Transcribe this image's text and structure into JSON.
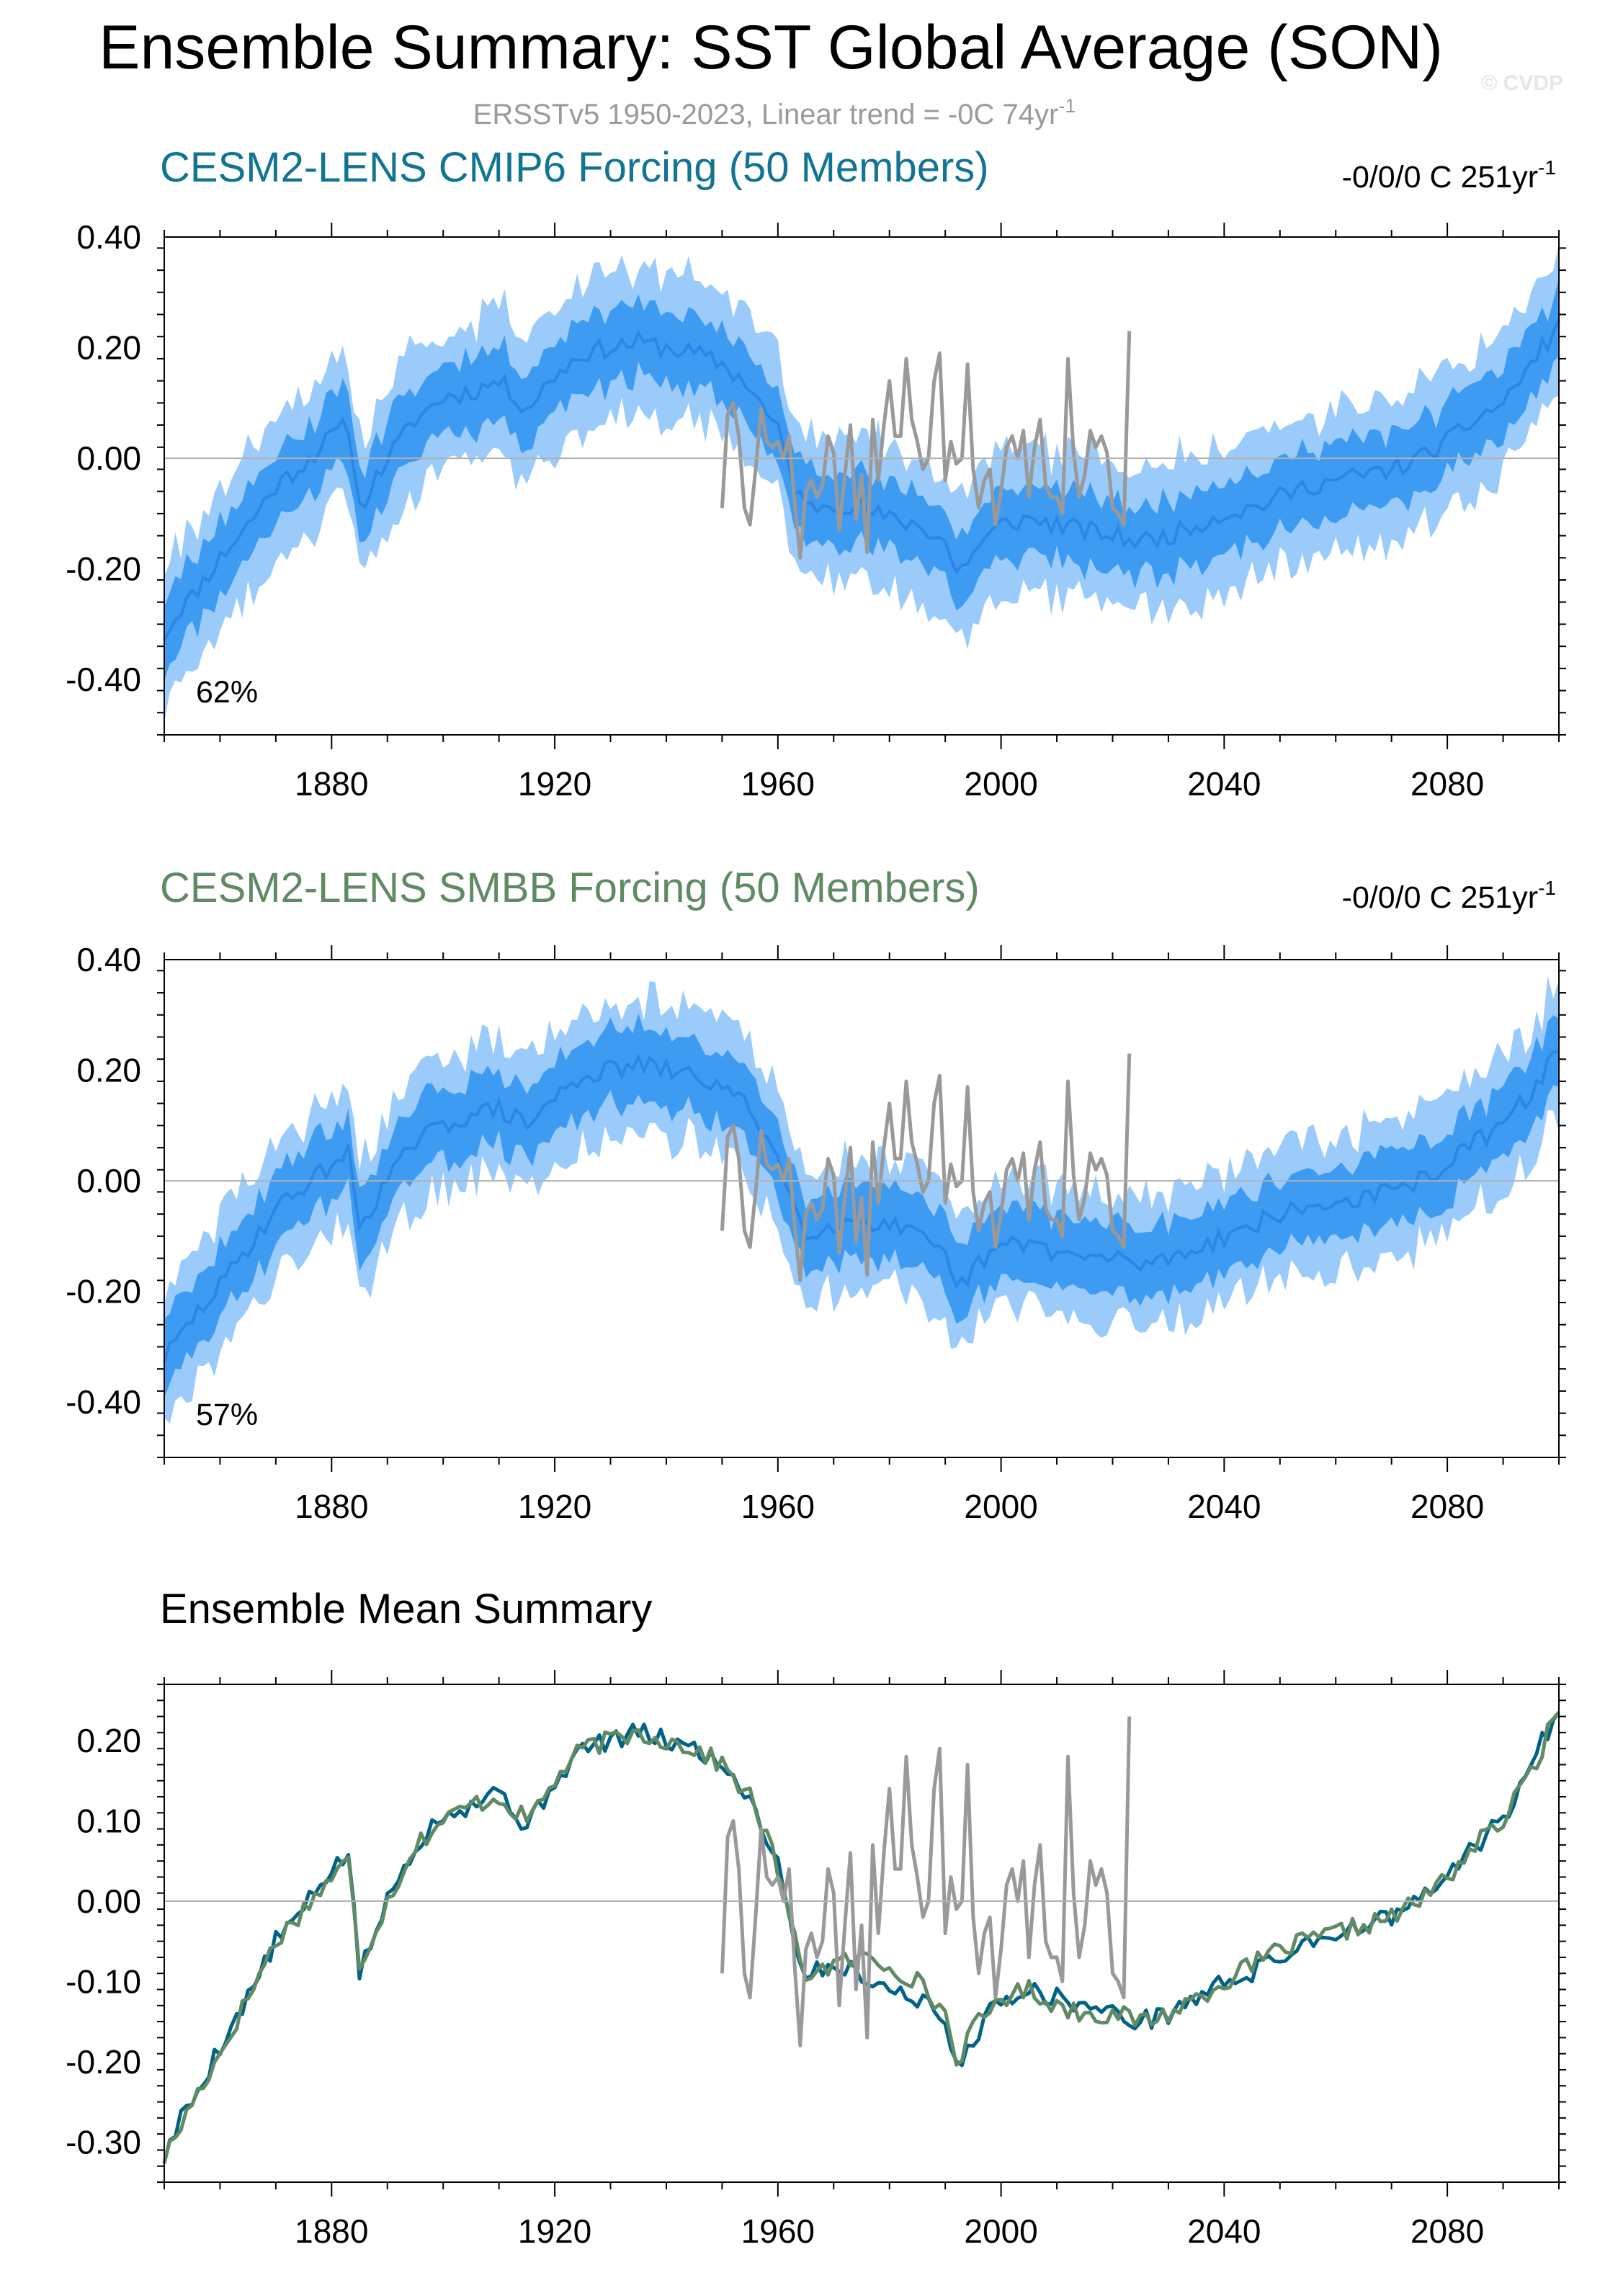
{
  "title": "Ensemble Summary: SST Global Average (SON)",
  "subtitle": {
    "text": "ERSSTv5 1950-2023, Linear trend = -0C 74yr",
    "sup": "-1"
  },
  "watermark": "© CVDP",
  "colors": {
    "band_outer": "#9bcbfb",
    "band_inner": "#3d9bf2",
    "mean_line": "#2c86e6",
    "obs": "#999999",
    "cmip6": "#006386",
    "smbb": "#5f8a63",
    "frame": "#000000",
    "zero_line": "#b0b0b0"
  },
  "panels": [
    {
      "title": "CESM2-LENS CMIP6 Forcing (50 Members)",
      "title_color": "#117495",
      "trend_text": "-0/0/0 C 251yr",
      "trend_sup": "-1",
      "percent_text": "62%",
      "seed": 11
    },
    {
      "title": "CESM2-LENS SMBB Forcing (50 Members)",
      "title_color": "#5f8a63",
      "trend_text": "-0/0/0 C 251yr",
      "trend_sup": "-1",
      "percent_text": "57%",
      "seed": 29
    },
    {
      "title": "Ensemble Mean Summary",
      "title_color": "#000000"
    }
  ],
  "chart_data": [
    {
      "type": "area",
      "title": "CESM2-LENS CMIP6 Forcing (50 Members)",
      "x_range": [
        1850,
        2100
      ],
      "ylim": [
        -0.5,
        0.4
      ],
      "x_ticks": [
        1880,
        1920,
        1960,
        2000,
        2040,
        2080
      ],
      "y_ticks": [
        "0.40",
        "0.20",
        "0.00",
        "-0.20",
        "-0.40"
      ],
      "y_tick_values": [
        0.4,
        0.2,
        0.0,
        -0.2,
        -0.4
      ],
      "ensemble_mean_anchors": {
        "x": [
          1850,
          1853,
          1855,
          1860,
          1865,
          1870,
          1875,
          1880,
          1883,
          1885,
          1890,
          1895,
          1900,
          1905,
          1910,
          1915,
          1920,
          1925,
          1930,
          1935,
          1940,
          1945,
          1950,
          1955,
          1958,
          1960,
          1963,
          1965,
          1970,
          1975,
          1980,
          1985,
          1990,
          1992,
          1995,
          2000,
          2005,
          2010,
          2015,
          2020,
          2025,
          2030,
          2035,
          2040,
          2045,
          2050,
          2055,
          2060,
          2065,
          2070,
          2075,
          2080,
          2085,
          2090,
          2095,
          2100
        ],
        "y": [
          -0.32,
          -0.27,
          -0.25,
          -0.18,
          -0.12,
          -0.05,
          -0.01,
          0.04,
          0.06,
          -0.09,
          0.0,
          0.07,
          0.11,
          0.12,
          0.14,
          0.09,
          0.15,
          0.19,
          0.2,
          0.21,
          0.2,
          0.19,
          0.17,
          0.13,
          0.08,
          0.05,
          -0.05,
          -0.09,
          -0.08,
          -0.09,
          -0.11,
          -0.12,
          -0.15,
          -0.21,
          -0.17,
          -0.12,
          -0.11,
          -0.12,
          -0.13,
          -0.14,
          -0.15,
          -0.14,
          -0.12,
          -0.1,
          -0.09,
          -0.07,
          -0.05,
          -0.04,
          -0.03,
          -0.02,
          0.0,
          0.03,
          0.07,
          0.1,
          0.17,
          0.24
        ]
      },
      "inner_band_half_width": 0.065,
      "outer_band_half_width": 0.13,
      "observations": {
        "name": "ERSSTv5",
        "x": [
          1950,
          1951,
          1952,
          1953,
          1954,
          1955,
          1956,
          1957,
          1958,
          1959,
          1960,
          1961,
          1962,
          1963,
          1964,
          1965,
          1966,
          1967,
          1968,
          1969,
          1970,
          1971,
          1972,
          1973,
          1974,
          1975,
          1976,
          1977,
          1978,
          1979,
          1980,
          1981,
          1982,
          1983,
          1984,
          1985,
          1986,
          1987,
          1988,
          1989,
          1990,
          1991,
          1992,
          1993,
          1994,
          1995,
          1996,
          1997,
          1998,
          1999,
          2000,
          2001,
          2002,
          2003,
          2004,
          2005,
          2006,
          2007,
          2008,
          2009,
          2010,
          2011,
          2012,
          2013,
          2014,
          2015,
          2016,
          2017,
          2018,
          2019,
          2020,
          2021,
          2022,
          2023
        ],
        "y": [
          -0.09,
          0.08,
          0.1,
          0.04,
          -0.09,
          -0.12,
          -0.02,
          0.09,
          0.03,
          0.02,
          0.03,
          0.0,
          0.04,
          -0.08,
          -0.18,
          -0.06,
          -0.04,
          -0.07,
          -0.05,
          0.04,
          0.01,
          -0.13,
          -0.03,
          0.06,
          -0.11,
          -0.03,
          -0.17,
          0.07,
          -0.04,
          0.06,
          0.14,
          0.04,
          0.04,
          0.18,
          0.07,
          0.03,
          -0.02,
          0.0,
          0.14,
          0.19,
          -0.04,
          0.03,
          -0.01,
          0.0,
          0.17,
          -0.02,
          -0.09,
          -0.04,
          -0.02,
          -0.12,
          -0.06,
          0.02,
          0.04,
          0.0,
          0.05,
          -0.07,
          0.02,
          0.07,
          -0.05,
          -0.07,
          -0.07,
          -0.1,
          0.18,
          0.01,
          -0.07,
          -0.03,
          0.05,
          0.02,
          0.04,
          0.01,
          -0.09,
          -0.1,
          -0.12,
          0.23
        ]
      }
    },
    {
      "type": "area",
      "title": "CESM2-LENS SMBB Forcing (50 Members)",
      "x_range": [
        1850,
        2100
      ],
      "ylim": [
        -0.5,
        0.4
      ],
      "x_ticks": [
        1880,
        1920,
        1960,
        2000,
        2040,
        2080
      ],
      "y_ticks": [
        "0.40",
        "0.20",
        "0.00",
        "-0.20",
        "-0.40"
      ],
      "y_tick_values": [
        0.4,
        0.2,
        0.0,
        -0.2,
        -0.4
      ],
      "ensemble_mean_anchors": {
        "x": [
          1850,
          1853,
          1855,
          1860,
          1865,
          1870,
          1875,
          1880,
          1883,
          1885,
          1890,
          1895,
          1900,
          1905,
          1910,
          1915,
          1920,
          1925,
          1930,
          1935,
          1940,
          1945,
          1950,
          1955,
          1958,
          1960,
          1963,
          1965,
          1970,
          1975,
          1980,
          1985,
          1990,
          1992,
          1995,
          2000,
          2005,
          2010,
          2015,
          2020,
          2025,
          2030,
          2035,
          2040,
          2045,
          2050,
          2055,
          2060,
          2065,
          2070,
          2075,
          2080,
          2085,
          2090,
          2095,
          2100
        ],
        "y": [
          -0.32,
          -0.28,
          -0.25,
          -0.19,
          -0.12,
          -0.05,
          -0.01,
          0.03,
          0.05,
          -0.08,
          0.0,
          0.07,
          0.1,
          0.12,
          0.13,
          0.1,
          0.15,
          0.19,
          0.2,
          0.21,
          0.2,
          0.19,
          0.17,
          0.13,
          0.08,
          0.04,
          -0.05,
          -0.09,
          -0.08,
          -0.07,
          -0.08,
          -0.1,
          -0.14,
          -0.2,
          -0.16,
          -0.12,
          -0.11,
          -0.13,
          -0.14,
          -0.14,
          -0.15,
          -0.14,
          -0.12,
          -0.1,
          -0.08,
          -0.06,
          -0.05,
          -0.04,
          -0.03,
          -0.02,
          0.0,
          0.03,
          0.07,
          0.1,
          0.16,
          0.24
        ]
      },
      "inner_band_half_width": 0.065,
      "outer_band_half_width": 0.12,
      "observations": {
        "name": "ERSSTv5",
        "x": [
          1950,
          1951,
          1952,
          1953,
          1954,
          1955,
          1956,
          1957,
          1958,
          1959,
          1960,
          1961,
          1962,
          1963,
          1964,
          1965,
          1966,
          1967,
          1968,
          1969,
          1970,
          1971,
          1972,
          1973,
          1974,
          1975,
          1976,
          1977,
          1978,
          1979,
          1980,
          1981,
          1982,
          1983,
          1984,
          1985,
          1986,
          1987,
          1988,
          1989,
          1990,
          1991,
          1992,
          1993,
          1994,
          1995,
          1996,
          1997,
          1998,
          1999,
          2000,
          2001,
          2002,
          2003,
          2004,
          2005,
          2006,
          2007,
          2008,
          2009,
          2010,
          2011,
          2012,
          2013,
          2014,
          2015,
          2016,
          2017,
          2018,
          2019,
          2020,
          2021,
          2022,
          2023
        ],
        "y": [
          -0.09,
          0.08,
          0.1,
          0.04,
          -0.09,
          -0.12,
          -0.02,
          0.09,
          0.03,
          0.02,
          0.03,
          0.0,
          0.04,
          -0.08,
          -0.18,
          -0.06,
          -0.04,
          -0.07,
          -0.05,
          0.04,
          0.01,
          -0.13,
          -0.03,
          0.06,
          -0.11,
          -0.03,
          -0.17,
          0.07,
          -0.04,
          0.06,
          0.14,
          0.04,
          0.04,
          0.18,
          0.07,
          0.03,
          -0.02,
          0.0,
          0.14,
          0.19,
          -0.04,
          0.03,
          -0.01,
          0.0,
          0.17,
          -0.02,
          -0.09,
          -0.04,
          -0.02,
          -0.12,
          -0.06,
          0.02,
          0.04,
          0.0,
          0.05,
          -0.07,
          0.02,
          0.07,
          -0.05,
          -0.07,
          -0.07,
          -0.1,
          0.18,
          0.01,
          -0.07,
          -0.03,
          0.05,
          0.02,
          0.04,
          0.01,
          -0.09,
          -0.1,
          -0.12,
          0.23
        ]
      }
    },
    {
      "type": "line",
      "title": "Ensemble Mean Summary",
      "x_range": [
        1850,
        2100
      ],
      "ylim": [
        -0.35,
        0.27
      ],
      "x_ticks": [
        1880,
        1920,
        1960,
        2000,
        2040,
        2080
      ],
      "y_ticks": [
        "0.20",
        "0.10",
        "0.00",
        "-0.10",
        "-0.20",
        "-0.30"
      ],
      "y_tick_values": [
        0.2,
        0.1,
        0.0,
        -0.1,
        -0.2,
        -0.3
      ],
      "series": [
        {
          "key": "cmip6",
          "ref_panel": 0,
          "noise_seed": 5
        },
        {
          "key": "smbb",
          "ref_panel": 1,
          "noise_seed": 17
        },
        {
          "key": "obs",
          "ref_panel": 0
        }
      ]
    }
  ]
}
